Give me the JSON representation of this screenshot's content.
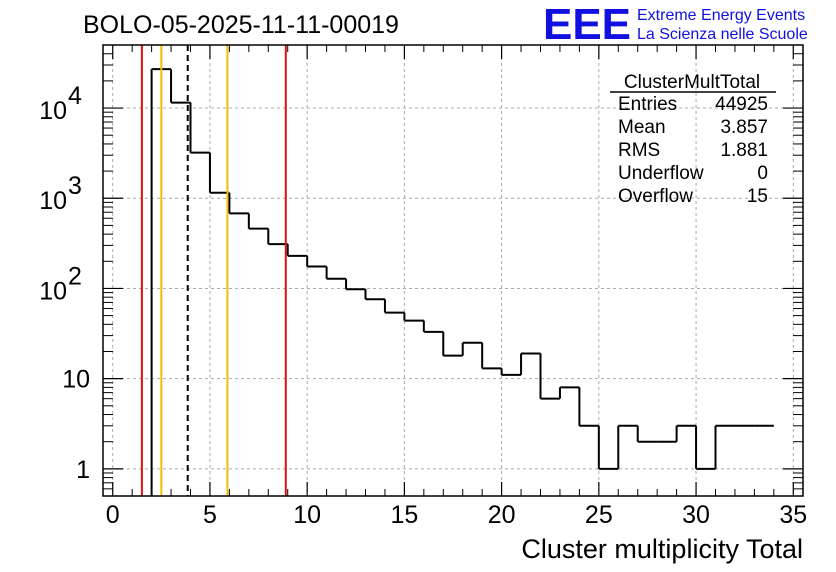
{
  "logo": {
    "big": "EEE",
    "line1": "Extreme Energy Events",
    "line2": "La Scienza nelle Scuole",
    "color": "#1010e0"
  },
  "colors": {
    "hist": "#000000",
    "grid": "#aaaaaa",
    "red": "#e01010",
    "yellow": "#f0c000"
  },
  "stats": {
    "name": "ClusterMultTotal",
    "rows": [
      {
        "label": "Entries",
        "value": "44925"
      },
      {
        "label": "Mean",
        "value": "3.857"
      },
      {
        "label": "RMS",
        "value": "1.881"
      },
      {
        "label": "Underflow",
        "value": "0"
      },
      {
        "label": "Overflow",
        "value": "15"
      }
    ]
  },
  "chart_data": {
    "type": "histogram",
    "title": "BOLO-05-2025-11-11-00019",
    "xlabel": "Cluster multiplicity Total",
    "ylabel": "",
    "xlim": [
      -0.5,
      35.5
    ],
    "ylim": [
      0.5,
      50000
    ],
    "yscale": "log",
    "grid": true,
    "bin_width": 1,
    "x_ticks": [
      0,
      5,
      10,
      15,
      20,
      25,
      30,
      35
    ],
    "y_ticks": [
      {
        "value": 1,
        "label": "1"
      },
      {
        "value": 10,
        "label": "10"
      },
      {
        "value": 100,
        "base": "10",
        "exp": "2"
      },
      {
        "value": 1000,
        "base": "10",
        "exp": "3"
      },
      {
        "value": 10000,
        "base": "10",
        "exp": "4"
      }
    ],
    "bins": [
      {
        "x": 2.5,
        "count": 27000
      },
      {
        "x": 3.5,
        "count": 11500
      },
      {
        "x": 4.5,
        "count": 3200
      },
      {
        "x": 5.5,
        "count": 1150
      },
      {
        "x": 6.5,
        "count": 680
      },
      {
        "x": 7.5,
        "count": 460
      },
      {
        "x": 8.5,
        "count": 310
      },
      {
        "x": 9.5,
        "count": 230
      },
      {
        "x": 10.5,
        "count": 175
      },
      {
        "x": 11.5,
        "count": 128
      },
      {
        "x": 12.5,
        "count": 98
      },
      {
        "x": 13.5,
        "count": 76
      },
      {
        "x": 14.5,
        "count": 54
      },
      {
        "x": 15.5,
        "count": 44
      },
      {
        "x": 16.5,
        "count": 33
      },
      {
        "x": 17.5,
        "count": 18
      },
      {
        "x": 18.5,
        "count": 25
      },
      {
        "x": 19.5,
        "count": 13
      },
      {
        "x": 20.5,
        "count": 11
      },
      {
        "x": 21.5,
        "count": 19
      },
      {
        "x": 22.5,
        "count": 6
      },
      {
        "x": 23.5,
        "count": 8
      },
      {
        "x": 24.5,
        "count": 3
      },
      {
        "x": 25.5,
        "count": 1
      },
      {
        "x": 26.5,
        "count": 3
      },
      {
        "x": 27.5,
        "count": 2
      },
      {
        "x": 28.5,
        "count": 2
      },
      {
        "x": 29.5,
        "count": 3
      },
      {
        "x": 30.5,
        "count": 1
      },
      {
        "x": 31.5,
        "count": 3
      },
      {
        "x": 32.5,
        "count": 3
      },
      {
        "x": 33.5,
        "count": 3
      }
    ],
    "vlines": [
      {
        "x": 1.5,
        "color": "red",
        "style": "solid"
      },
      {
        "x": 2.5,
        "color": "yellow",
        "style": "solid"
      },
      {
        "x": 3.857,
        "color": "black",
        "style": "dashed"
      },
      {
        "x": 5.9,
        "color": "yellow",
        "style": "solid"
      },
      {
        "x": 8.9,
        "color": "red",
        "style": "solid"
      }
    ]
  }
}
